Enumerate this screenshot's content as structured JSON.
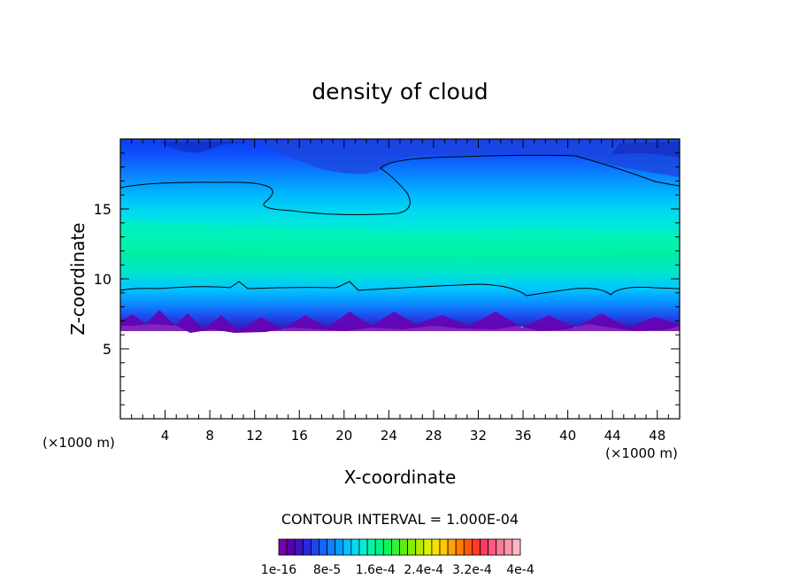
{
  "chart_data": {
    "type": "heatmap",
    "title": "density of cloud",
    "xlabel": "X-coordinate",
    "ylabel": "Z-coordinate",
    "x_unit_left": "(×1000 m)",
    "x_unit_right": "(×1000 m)",
    "xlim": [
      0,
      50
    ],
    "ylim": [
      0,
      20
    ],
    "x_ticks": [
      4,
      8,
      12,
      16,
      20,
      24,
      28,
      32,
      36,
      40,
      44,
      48
    ],
    "y_ticks": [
      5,
      10,
      15
    ],
    "contour_interval_text": "CONTOUR INTERVAL = 1.000E-04",
    "colorbar": {
      "colors": [
        "#7a00a8",
        "#5a00b4",
        "#3c14c8",
        "#2a28dc",
        "#1e46f0",
        "#1464ff",
        "#0a82ff",
        "#00a0ff",
        "#00c3ff",
        "#00dcf5",
        "#00f0d2",
        "#00f5aa",
        "#00f582",
        "#0ff55a",
        "#32f032",
        "#5aeb14",
        "#87eb00",
        "#b4eb00",
        "#dcf000",
        "#f5e100",
        "#ffc800",
        "#ffa500",
        "#ff7d00",
        "#ff5a00",
        "#ff3c28",
        "#ff3c5a",
        "#ff5a82",
        "#ff7896",
        "#ff96aa",
        "#ffb4c3"
      ],
      "labels": [
        "1e-16",
        "8e-5",
        "1.6e-4",
        "2.4e-4",
        "3.2e-4",
        "4e-4"
      ]
    },
    "profile": {
      "z": [
        6.5,
        8,
        9,
        10,
        11,
        12,
        13,
        14,
        15,
        16,
        17,
        18,
        19.5
      ],
      "density": [
        1e-16,
        4e-05,
        8e-05,
        0.00012,
        0.00015,
        0.000165,
        0.00017,
        0.000155,
        0.00013,
        0.000105,
        8.5e-05,
        6e-05,
        3e-05
      ],
      "description": ""
    }
  }
}
